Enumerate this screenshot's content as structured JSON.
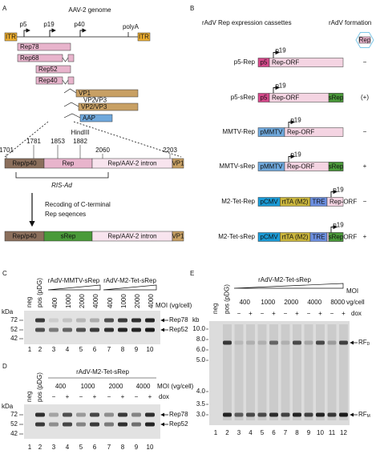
{
  "panel_a": {
    "label": "A",
    "title": "AAV-2 genome",
    "promoters": [
      "p5",
      "p19",
      "p40"
    ],
    "polya": "polyA",
    "itr": [
      "ITR",
      "ITR"
    ],
    "transcripts": [
      "Rep78",
      "Rep68",
      "Rep52",
      "Rep40",
      "VP1",
      "VP2/VP3",
      "AAP"
    ],
    "vp_starts": [
      "VP2",
      "VP3"
    ],
    "restriction_site": "HindIII",
    "positions": [
      "1701",
      "1781",
      "1853",
      "1882",
      "2060",
      "2203"
    ],
    "wildtype_segments": [
      "Rep/p40",
      "Rep",
      "Rep/AAV-2 intron",
      "VP1"
    ],
    "ris_label": "RIS-Ad",
    "step": [
      "Recoding of C-terminal",
      "Rep seqences"
    ],
    "recoded_segments": [
      "Rep/p40",
      "sRep",
      "Rep/AAV-2 intron",
      "VP1"
    ]
  },
  "panel_b": {
    "label": "B",
    "title": "rAdV Rep expression cassettes",
    "outcome_title": "rAdV formation",
    "icon": "Rep",
    "promoter": "p19",
    "orf": "Rep-ORF",
    "srep": "sRep",
    "rows": [
      {
        "name": "p5-Rep",
        "elements": [
          {
            "text": "p5",
            "color": "#d4498a"
          }
        ],
        "srep": false,
        "result": "−"
      },
      {
        "name": "p5-sRep",
        "elements": [
          {
            "text": "p5",
            "color": "#d4498a"
          }
        ],
        "srep": true,
        "result": "(+)"
      },
      {
        "name": "MMTV-Rep",
        "elements": [
          {
            "text": "pMMTV",
            "color": "#6fa8dc"
          }
        ],
        "srep": false,
        "result": "−"
      },
      {
        "name": "MMTV-sRep",
        "elements": [
          {
            "text": "pMMTV",
            "color": "#6fa8dc"
          }
        ],
        "srep": true,
        "result": "+"
      },
      {
        "name": "M2-Tet-Rep",
        "elements": [
          {
            "text": "pCMV",
            "color": "#1a9bd7"
          },
          {
            "text": "rtTA (M2)",
            "color": "#c9b53c"
          },
          {
            "text": "TRE",
            "color": "#6c8fe0"
          }
        ],
        "srep": false,
        "result": "−"
      },
      {
        "name": "M2-Tet-sRep",
        "elements": [
          {
            "text": "pCMV",
            "color": "#1a9bd7"
          },
          {
            "text": "rtTA (M2)",
            "color": "#c9b53c"
          },
          {
            "text": "TRE",
            "color": "#6c8fe0"
          }
        ],
        "srep": true,
        "result": "+"
      }
    ]
  },
  "panel_c": {
    "label": "C",
    "unit": "kDa",
    "markers": [
      "72",
      "52",
      "42"
    ],
    "controls": [
      "neg",
      "pos (pDG)"
    ],
    "groups": [
      "rAdV-MMTV-sRep",
      "rAdV-M2-Tet-sRep"
    ],
    "moi_title": "MOI (vg/cell)",
    "moi": [
      "400",
      "1000",
      "2000",
      "4000",
      "400",
      "1000",
      "2000",
      "4000"
    ],
    "bands": [
      "Rep78",
      "Rep52"
    ],
    "lane_numbers": [
      "1",
      "2",
      "3",
      "4",
      "5",
      "6",
      "7",
      "8",
      "9",
      "10"
    ]
  },
  "panel_d": {
    "label": "D",
    "unit": "kDa",
    "markers": [
      "72",
      "52",
      "42"
    ],
    "controls": [
      "neg",
      "pos (pDG)"
    ],
    "group": "rAdV-M2-Tet-sRep",
    "moi_title": "MOI (vg/cell)",
    "moi": [
      "400",
      "1000",
      "2000",
      "4000"
    ],
    "dox_title": "dox",
    "dox": [
      "−",
      "+",
      "−",
      "+",
      "−",
      "+",
      "−",
      "+"
    ],
    "bands": [
      "Rep78",
      "Rep52"
    ],
    "lane_numbers": [
      "1",
      "2",
      "3",
      "4",
      "5",
      "6",
      "7",
      "8",
      "9",
      "10"
    ]
  },
  "panel_e": {
    "label": "E",
    "unit": "kb",
    "markers": [
      "10.0",
      "8.0",
      "6.0",
      "5.0",
      "4.0",
      "3.5",
      "3.0"
    ],
    "controls": [
      "neg",
      "pos (pDG)"
    ],
    "group": "rAdV-M2-Tet-sRep",
    "moi_title": "MOI",
    "moi_unit": "vg/cell",
    "moi": [
      "400",
      "1000",
      "2000",
      "4000",
      "8000"
    ],
    "dox_title": "dox",
    "dox": [
      "−",
      "+",
      "−",
      "+",
      "−",
      "+",
      "−",
      "+",
      "−",
      "+"
    ],
    "bands": [
      {
        "text": "RF",
        "sub": "D"
      },
      {
        "text": "RF",
        "sub": "M"
      }
    ],
    "lane_numbers": [
      "1",
      "2",
      "3",
      "4",
      "5",
      "6",
      "7",
      "8",
      "9",
      "10",
      "11",
      "12"
    ]
  }
}
